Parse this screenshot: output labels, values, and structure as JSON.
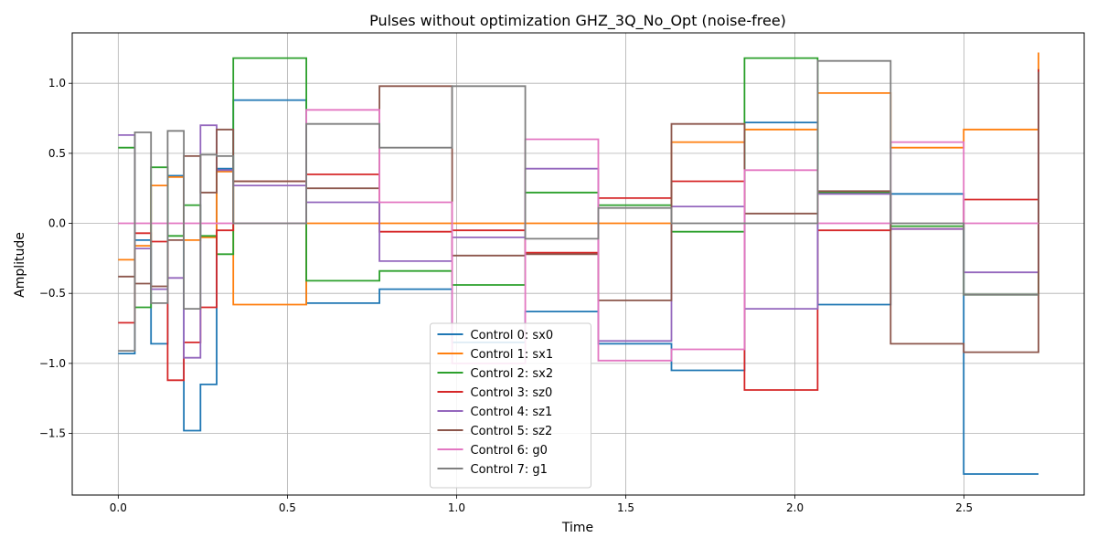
{
  "chart_data": {
    "type": "line",
    "step": "post",
    "title": "Pulses without optimization GHZ_3Q_No_Opt (noise-free)",
    "xlabel": "Time",
    "ylabel": "Amplitude",
    "xlim": [
      -0.136,
      2.855
    ],
    "ylim": [
      -1.94,
      1.36
    ],
    "xticks": [
      0.0,
      0.5,
      1.0,
      1.5,
      2.0,
      2.5
    ],
    "xtick_labels": [
      "0.0",
      "0.5",
      "1.0",
      "1.5",
      "2.0",
      "2.5"
    ],
    "yticks": [
      -1.5,
      -1.0,
      -0.5,
      0.0,
      0.5,
      1.0
    ],
    "ytick_labels": [
      "−1.5",
      "−1.0",
      "−0.5",
      "0.0",
      "0.5",
      "1.0"
    ],
    "grid": true,
    "legend_position": "lower center",
    "x": [
      0.0,
      0.049,
      0.097,
      0.146,
      0.194,
      0.243,
      0.291,
      0.34,
      0.556,
      0.772,
      0.987,
      1.203,
      1.419,
      1.635,
      1.851,
      2.067,
      2.283,
      2.499,
      2.72
    ],
    "series": [
      {
        "name": "Control 0: sx0",
        "color": "#1f77b4",
        "values": [
          -0.93,
          -0.12,
          -0.86,
          0.34,
          -1.48,
          -1.15,
          0.39,
          0.88,
          -0.57,
          -0.47,
          -0.85,
          -0.63,
          -0.86,
          -1.05,
          0.72,
          -0.58,
          0.21,
          -1.79,
          -1.79
        ]
      },
      {
        "name": "Control 1: sx1",
        "color": "#ff7f0e",
        "values": [
          -0.26,
          -0.16,
          0.27,
          0.33,
          -0.12,
          -0.1,
          0.37,
          -0.58,
          0.0,
          0.0,
          0.0,
          0.0,
          0.0,
          0.58,
          0.67,
          0.93,
          0.54,
          0.67,
          1.22
        ]
      },
      {
        "name": "Control 2: sx2",
        "color": "#2ca02c",
        "values": [
          0.54,
          -0.6,
          0.4,
          -0.09,
          0.13,
          -0.09,
          -0.22,
          1.18,
          -0.41,
          -0.34,
          -0.44,
          0.22,
          0.13,
          -0.06,
          1.18,
          0.22,
          -0.02,
          -0.51,
          1.1
        ]
      },
      {
        "name": "Control 3: sz0",
        "color": "#d62728",
        "values": [
          -0.71,
          -0.07,
          -0.13,
          -1.12,
          -0.85,
          -0.6,
          -0.05,
          0.3,
          0.35,
          -0.06,
          -0.05,
          -0.21,
          0.18,
          0.3,
          -1.19,
          -0.05,
          -0.04,
          0.17,
          1.1
        ]
      },
      {
        "name": "Control 4: sz1",
        "color": "#9467bd",
        "values": [
          0.63,
          -0.18,
          -0.47,
          -0.39,
          -0.96,
          0.7,
          0.38,
          0.27,
          0.15,
          -0.27,
          -0.1,
          0.39,
          -0.84,
          0.12,
          -0.61,
          0.21,
          -0.04,
          -0.35,
          1.08
        ]
      },
      {
        "name": "Control 5: sz2",
        "color": "#8c564b",
        "values": [
          -0.38,
          -0.43,
          -0.45,
          -0.12,
          0.48,
          0.22,
          0.67,
          0.3,
          0.25,
          0.98,
          -0.23,
          -0.22,
          -0.55,
          0.71,
          0.07,
          0.23,
          -0.86,
          -0.92,
          1.08
        ]
      },
      {
        "name": "Control 6: g0",
        "color": "#e377c2",
        "values": [
          0.0,
          0.0,
          0.0,
          0.0,
          0.0,
          0.0,
          0.0,
          0.0,
          0.81,
          0.15,
          -1.0,
          0.6,
          -0.98,
          -0.9,
          0.38,
          0.0,
          0.58,
          0.0,
          0.0
        ]
      },
      {
        "name": "Control 7: g1",
        "color": "#7f7f7f",
        "values": [
          -0.91,
          0.65,
          -0.57,
          0.66,
          -0.61,
          0.49,
          0.48,
          0.0,
          0.71,
          0.54,
          0.98,
          -0.11,
          0.11,
          0.0,
          0.0,
          1.16,
          0.0,
          -0.51,
          -0.51
        ]
      }
    ]
  }
}
